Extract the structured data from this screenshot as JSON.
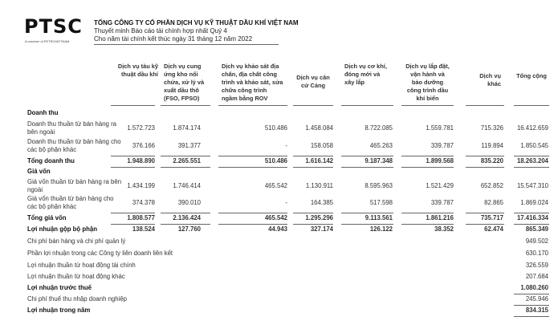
{
  "logo": {
    "text": "PTSC",
    "sub": "A member of PETROVIETNAM"
  },
  "header": {
    "company": "TỔNG CÔNG TY CỔ PHẦN DỊCH VỤ KỸ THUẬT DẦU KHÍ VIỆT NAM",
    "doc": "Thuyết minh Báo cáo tài chính hợp nhất Quý 4",
    "period": "Cho năm tài chính kết thúc ngày 31 tháng 12 năm 2022"
  },
  "columns": [
    "Dịch vụ tàu kỹ thuật dầu khí",
    "Dịch vụ cung ứng kho nổi chứa, xử lý và xuất dầu thô (FSO, FPSO)",
    "Dịch vụ khảo sát địa chấn, địa chất công trình và khảo sát, sửa chữa công trình ngầm bằng ROV",
    "Dịch vụ căn cứ Cảng",
    "Dịch vụ cơ khí, đóng mới và xây lắp",
    "Dịch vụ lắp đặt, vận hành và bảo dưỡng công trình dầu khí biển",
    "Dịch vụ khác",
    "Tổng cộng"
  ],
  "rows": [
    {
      "label": "Doanh thu",
      "bold": true,
      "values": []
    },
    {
      "label": "Doanh thu thuần từ bán hàng ra bên ngoài",
      "values": [
        "1.572.723",
        "1.874.174",
        "510.486",
        "1.458.084",
        "8.722.085",
        "1.559.781",
        "715.326",
        "16.412.659"
      ]
    },
    {
      "label": "Doanh thu thuần từ bán hàng cho các bộ phận khác",
      "values": [
        "376.166",
        "391.377",
        "-",
        "158.058",
        "465.263",
        "339.787",
        "119.894",
        "1.850.545"
      ]
    },
    {
      "label": "Tổng doanh thu",
      "bold": true,
      "values": [
        "1.948.890",
        "2.265.551",
        "510.486",
        "1.616.142",
        "9.187.348",
        "1.899.568",
        "835.220",
        "18.263.204"
      ]
    },
    {
      "label": "Giá vốn",
      "bold": true,
      "values": []
    },
    {
      "label": "Giá vốn thuần từ bán hàng ra bên ngoài",
      "values": [
        "1.434.199",
        "1.746.414",
        "465.542",
        "1.130.911",
        "8.595.963",
        "1.521.429",
        "652.852",
        "15.547.310"
      ]
    },
    {
      "label": "Giá vốn thuần từ bán hàng cho các bộ phận khác",
      "values": [
        "374.378",
        "390.010",
        "-",
        "164.385",
        "517.598",
        "339.787",
        "82.865",
        "1.869.024"
      ]
    },
    {
      "label": "Tổng giá vốn",
      "bold": true,
      "values": [
        "1.808.577",
        "2.136.424",
        "465.542",
        "1.295.296",
        "9.113.561",
        "1.861.216",
        "735.717",
        "17.416.334"
      ]
    },
    {
      "label": "Lợi nhuận gộp bộ phận",
      "bold": true,
      "values": [
        "138.524",
        "127.760",
        "44.943",
        "327.174",
        "126.122",
        "38.352",
        "62.474",
        "865.349"
      ]
    },
    {
      "label": "Chi phí bán hàng và chi phí quản lý",
      "values": [
        "",
        "",
        "",
        "",
        "",
        "",
        "",
        "949.502"
      ]
    },
    {
      "label": "Phần lợi nhuận trong các Công ty liên doanh liên kết",
      "values": [
        "",
        "",
        "",
        "",
        "",
        "",
        "",
        "630.170"
      ]
    },
    {
      "label": "Lợi nhuận thuần từ hoạt động tài chính",
      "values": [
        "",
        "",
        "",
        "",
        "",
        "",
        "",
        "326.559"
      ]
    },
    {
      "label": "Lợi nhuận thuần từ hoạt động khác",
      "values": [
        "",
        "",
        "",
        "",
        "",
        "",
        "",
        "207.684"
      ]
    },
    {
      "label": "Lợi nhuận trước thuế",
      "bold": true,
      "values": [
        "",
        "",
        "",
        "",
        "",
        "",
        "",
        "1.080.260"
      ]
    },
    {
      "label": "Chi phí thuế thu nhập doanh nghiệp",
      "values": [
        "",
        "",
        "",
        "",
        "",
        "",
        "",
        "245.946"
      ]
    },
    {
      "label": "Lợi nhuận trong năm",
      "bold": true,
      "values": [
        "",
        "",
        "",
        "",
        "",
        "",
        "",
        "834.315"
      ]
    }
  ]
}
